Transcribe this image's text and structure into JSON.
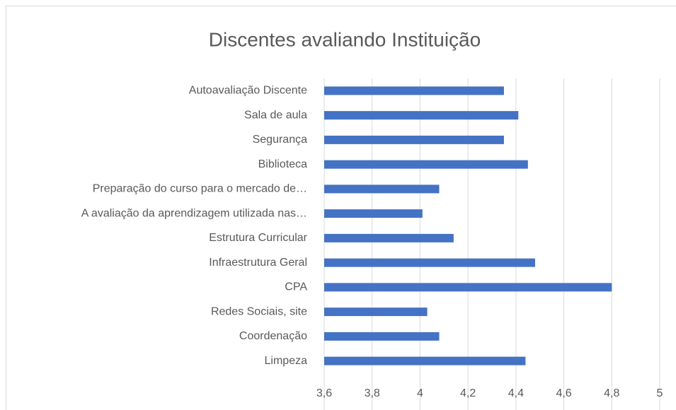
{
  "chart_data": {
    "type": "barh",
    "title": "Discentes avaliando Instituição",
    "categories": [
      "Autoavaliação Discente",
      "Sala de aula",
      "Segurança",
      "Biblioteca",
      "Preparação do curso para o mercado de…",
      "A avaliação da aprendizagem utilizada nas…",
      "Estrutura Curricular",
      "Infraestrutura Geral",
      "CPA",
      "Redes Sociais, site",
      "Coordenação",
      "Limpeza"
    ],
    "values": [
      4.35,
      4.41,
      4.35,
      4.45,
      4.08,
      4.01,
      4.14,
      4.48,
      4.8,
      4.03,
      4.08,
      4.44
    ],
    "color": "#4472c4",
    "xlim": [
      3.6,
      5
    ],
    "xticks": [
      {
        "value": 3.6,
        "label": "3,6"
      },
      {
        "value": 3.8,
        "label": "3,8"
      },
      4,
      {
        "value": 4.2,
        "label": "4,2"
      },
      {
        "value": 4.4,
        "label": "4,4"
      },
      {
        "value": 4.6,
        "label": "4,6"
      },
      {
        "value": 4.8,
        "label": "4,8"
      },
      5
    ],
    "grid": true
  }
}
